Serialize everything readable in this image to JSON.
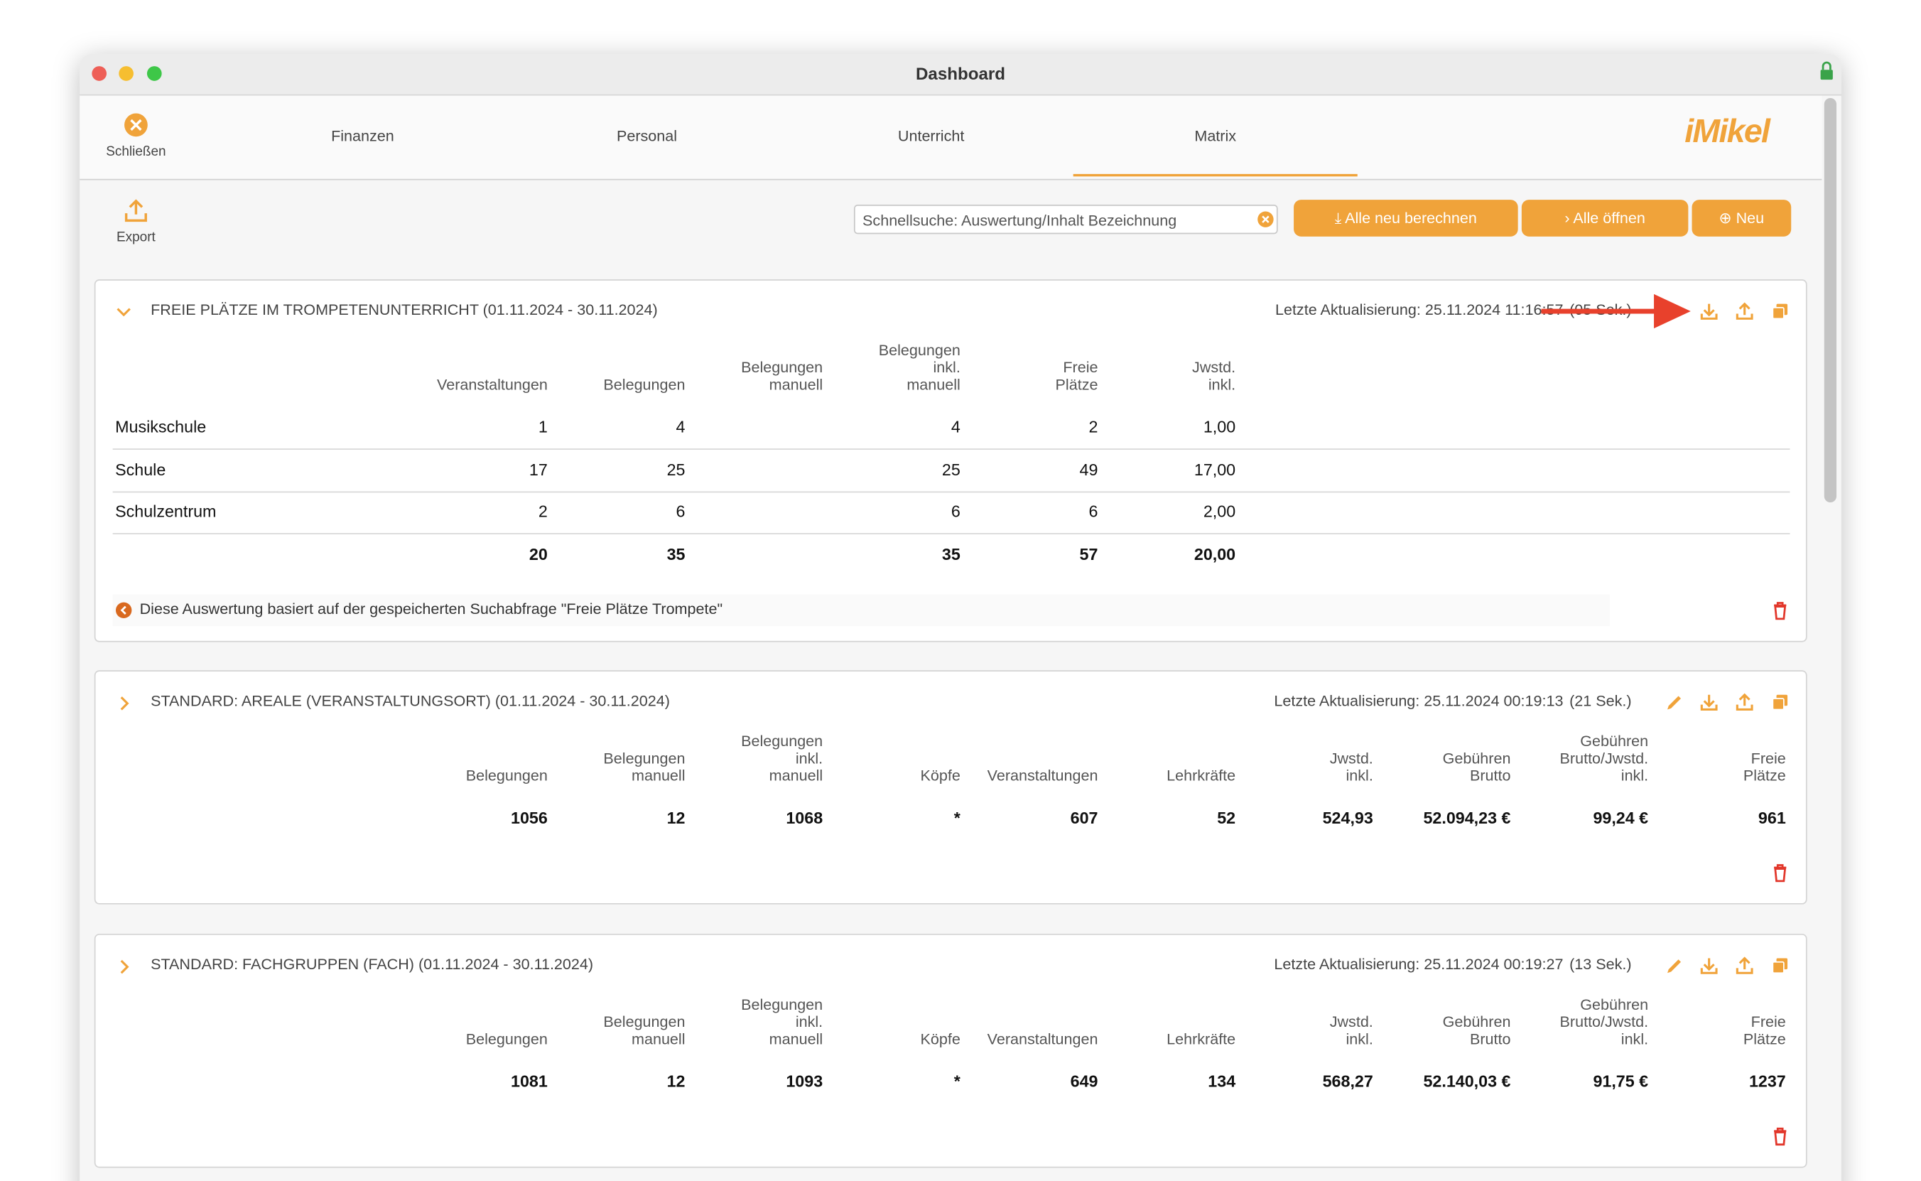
{
  "window": {
    "title": "Dashboard"
  },
  "toolbar": {
    "close": "Schließen",
    "tabs": [
      "Finanzen",
      "Personal",
      "Unterricht",
      "Matrix"
    ],
    "logo": "iMikel"
  },
  "actions": {
    "export": "Export",
    "search_placeholder": "Schnellsuche: Auswertung/Inhalt Bezeichnung",
    "buttons": [
      "Alle neu berechnen",
      "Alle öffnen",
      "Neu"
    ]
  },
  "panels": [
    {
      "title": "FREIE PLÄTZE IM TROMPETENUNTERRICHT (01.11.2024 - 30.11.2024)",
      "updated": "Letzte Aktualisierung: 25.11.2024 11:16:57",
      "duration": "(05 Sek.)",
      "columns": [
        "Veranstaltungen",
        "Belegungen",
        "Belegungen\nmanuell",
        "Belegungen\ninkl.\nmanuell",
        "Freie\nPlätze",
        "Jwstd.\ninkl."
      ],
      "rows": [
        {
          "label": "Musikschule",
          "cells": [
            1,
            4,
            null,
            4,
            2,
            "1,00"
          ]
        },
        {
          "label": "Schule",
          "cells": [
            17,
            25,
            null,
            25,
            49,
            "17,00"
          ]
        },
        {
          "label": "Schulzentrum",
          "cells": [
            2,
            6,
            null,
            6,
            6,
            "2,00"
          ]
        }
      ],
      "totals": [
        20,
        35,
        null,
        35,
        57,
        "20,00"
      ],
      "note": "Diese Auswertung basiert auf der gespeicherten Suchabfrage \"Freie Plätze Trompete\""
    },
    {
      "title": "STANDARD: AREALE (VERANSTALTUNGSORT) (01.11.2024 - 30.11.2024)",
      "updated": "Letzte Aktualisierung: 25.11.2024 00:19:13",
      "duration": "(21 Sek.)",
      "columns": [
        "Belegungen",
        "Belegungen\nmanuell",
        "Belegungen\ninkl.\nmanuell",
        "Köpfe",
        "Veranstaltungen",
        "Lehrkräfte",
        "Jwstd.\ninkl.",
        "Gebühren\nBrutto",
        "Gebühren\nBrutto/Jwstd.\ninkl.",
        "Freie\nPlätze"
      ],
      "rows": [],
      "totals": [
        1056,
        12,
        1068,
        "*",
        607,
        52,
        "524,93",
        "52.094,23 €",
        "99,24 €",
        961
      ]
    },
    {
      "title": "STANDARD: FACHGRUPPEN (FACH) (01.11.2024 - 30.11.2024)",
      "updated": "Letzte Aktualisierung: 25.11.2024 00:19:27",
      "duration": "(13 Sek.)",
      "columns": [
        "Belegungen",
        "Belegungen\nmanuell",
        "Belegungen\ninkl.\nmanuell",
        "Köpfe",
        "Veranstaltungen",
        "Lehrkräfte",
        "Jwstd.\ninkl.",
        "Gebühren\nBrutto",
        "Gebühren\nBrutto/Jwstd.\ninkl.",
        "Freie\nPlätze"
      ],
      "rows": [],
      "totals": [
        1081,
        12,
        1093,
        "*",
        649,
        134,
        "568,27",
        "52.140,03 €",
        "91,75 €",
        1237
      ]
    }
  ]
}
